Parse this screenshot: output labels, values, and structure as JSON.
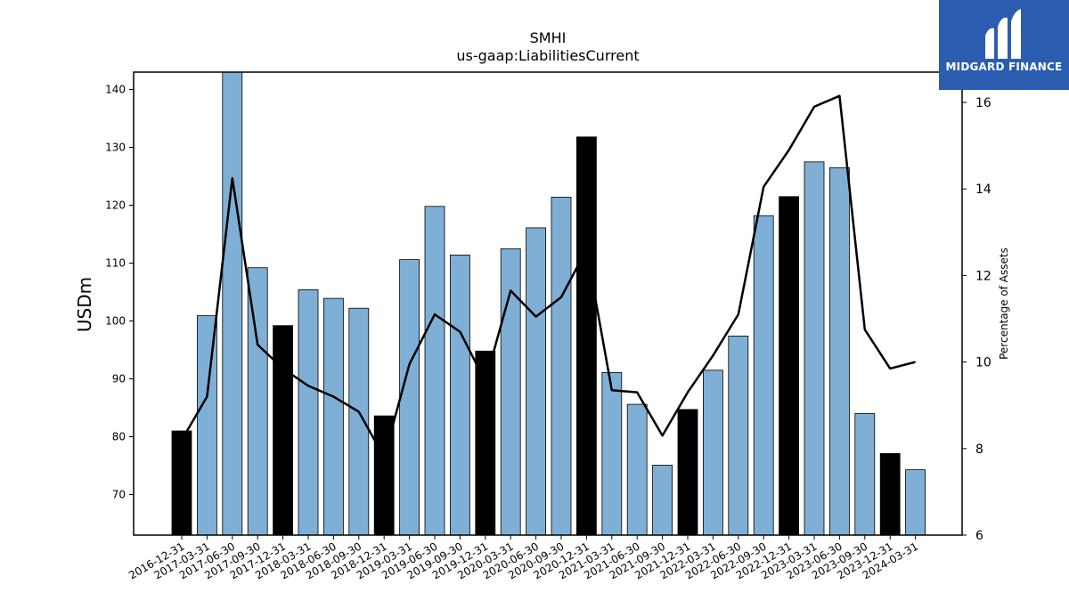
{
  "logo": {
    "text": "MIDGARD FINANCE",
    "background": "#2a5db0"
  },
  "colors": {
    "bar_default": "#7fafd4",
    "bar_highlight": "#000000",
    "line": "#000000"
  },
  "chart_data": {
    "type": "bar",
    "title": "SMHI",
    "subtitle": "us-gaap:LiabilitiesCurrent",
    "ylabel": "USDm",
    "y2label": "Percentage of Assets",
    "ylim": [
      63,
      143
    ],
    "y2lim": [
      6,
      16.7
    ],
    "yticks": [
      70,
      80,
      90,
      100,
      110,
      120,
      130,
      140
    ],
    "y2ticks": [
      6,
      8,
      10,
      12,
      14,
      16
    ],
    "categories": [
      "2016-12-31",
      "2017-03-31",
      "2017-06-30",
      "2017-09-30",
      "2017-12-31",
      "2018-03-31",
      "2018-06-30",
      "2018-09-30",
      "2018-12-31",
      "2019-03-31",
      "2019-06-30",
      "2019-09-30",
      "2019-12-31",
      "2020-03-31",
      "2020-06-30",
      "2020-09-30",
      "2020-12-31",
      "2021-03-31",
      "2021-06-30",
      "2021-09-30",
      "2021-12-31",
      "2022-03-31",
      "2022-06-30",
      "2022-09-30",
      "2022-12-31",
      "2023-03-31",
      "2023-06-30",
      "2023-09-30",
      "2023-12-31",
      "2024-03-31"
    ],
    "series": [
      {
        "type": "bar",
        "values": [
          81.0,
          100.9,
          143.3,
          109.2,
          99.2,
          105.4,
          103.9,
          102.2,
          83.6,
          110.6,
          119.8,
          111.4,
          94.8,
          112.5,
          116.1,
          121.4,
          131.8,
          91.1,
          85.6,
          75.1,
          84.7,
          91.5,
          97.4,
          118.2,
          121.5,
          127.5,
          126.5,
          84.0,
          77.1,
          74.3
        ],
        "highlight": [
          true,
          false,
          false,
          false,
          true,
          false,
          false,
          false,
          true,
          false,
          false,
          false,
          true,
          false,
          false,
          false,
          true,
          false,
          false,
          false,
          true,
          false,
          false,
          false,
          true,
          false,
          false,
          false,
          true,
          false
        ]
      },
      {
        "type": "line",
        "axis": "right",
        "values": [
          8.2,
          9.2,
          14.25,
          10.4,
          9.85,
          9.45,
          9.2,
          8.85,
          7.8,
          9.95,
          11.1,
          10.7,
          9.55,
          11.65,
          11.05,
          11.5,
          12.6,
          9.35,
          9.3,
          8.3,
          9.3,
          10.15,
          11.1,
          14.05,
          14.9,
          15.9,
          16.15,
          10.75,
          9.85,
          10.0
        ]
      }
    ]
  }
}
